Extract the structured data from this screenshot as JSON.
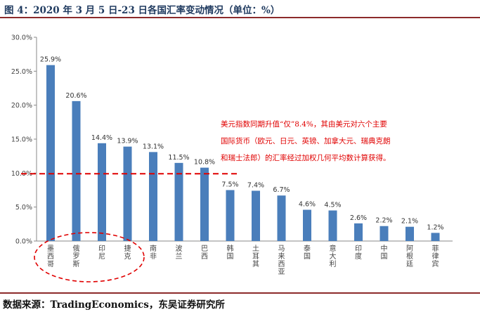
{
  "header": {
    "title": "图 4：2020 年 3 月 5 日-23 日各国汇率变动情况（单位：%）"
  },
  "footer": {
    "source": "数据来源：TradingEconomics，东吴证券研究所"
  },
  "chart_data": {
    "type": "bar",
    "title": "2020 年 3 月 5 日-23 日各国汇率变动情况（单位：%）",
    "xlabel": "",
    "ylabel": "",
    "ylim": [
      0,
      30
    ],
    "yticks": [
      0,
      5,
      10,
      15,
      20,
      25,
      30
    ],
    "ytick_labels": [
      "0.0%",
      "5.0%",
      "10.0%",
      "15.0%",
      "20.0%",
      "25.0%",
      "30.0%"
    ],
    "categories": [
      "墨西哥",
      "俄罗斯",
      "印尼",
      "捷克",
      "南非",
      "波兰",
      "巴西",
      "韩国",
      "土耳其",
      "马来西亚",
      "泰国",
      "意大利",
      "印度",
      "中国",
      "阿根廷",
      "菲律宾"
    ],
    "values": [
      25.9,
      20.6,
      14.4,
      13.9,
      13.1,
      11.5,
      10.8,
      7.5,
      7.4,
      6.7,
      4.6,
      4.5,
      2.6,
      2.2,
      2.1,
      1.2
    ],
    "value_labels": [
      "25.9%",
      "20.6%",
      "14.4%",
      "13.9%",
      "13.1%",
      "11.5%",
      "10.8%",
      "7.5%",
      "7.4%",
      "6.7%",
      "4.6%",
      "4.5%",
      "2.6%",
      "2.2%",
      "2.1%",
      "1.2%"
    ],
    "reference_line": {
      "value": 9.9,
      "style": "dashed",
      "color": "#e00000"
    },
    "highlight": {
      "categories": [
        "墨西哥",
        "俄罗斯",
        "印尼",
        "捷克"
      ],
      "style": "dashed ellipse",
      "color": "#e00000"
    },
    "annotation": [
      "美元指数同期升值“仅”8.4%，其由美元对六个主要",
      "国际货币（欧元、日元、英镑、加拿大元、瑞典克朗",
      "和瑞士法郎）的汇率经过加权几何平均数计算获得。"
    ],
    "bar_color": "#4a7ebb",
    "grid": false
  }
}
